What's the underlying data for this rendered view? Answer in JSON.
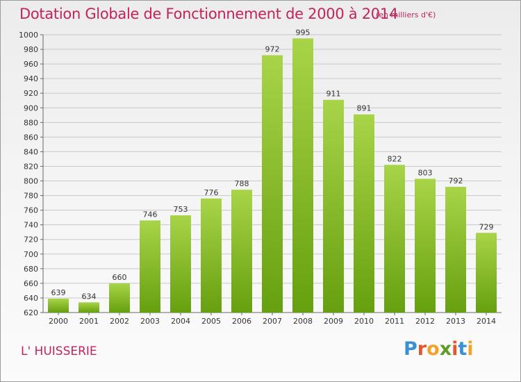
{
  "header": {
    "title": "Dotation Globale de Fonctionnement de 2000 à 2014",
    "unit": "(en milliers d'€)"
  },
  "footer": {
    "commune": "L' HUISSERIE",
    "logo_text": "Proxiti",
    "logo_colors": [
      "#3a8fd6",
      "#e8552b",
      "#f0a22a",
      "#5a9e2a",
      "#e8552b",
      "#3a8fd6",
      "#f0a22a"
    ]
  },
  "chart_data": {
    "type": "bar",
    "categories": [
      "2000",
      "2001",
      "2002",
      "2003",
      "2004",
      "2005",
      "2006",
      "2007",
      "2008",
      "2009",
      "2010",
      "2011",
      "2012",
      "2013",
      "2014"
    ],
    "values": [
      639,
      634,
      660,
      746,
      753,
      776,
      788,
      972,
      995,
      911,
      891,
      822,
      803,
      792,
      729
    ],
    "ylim": [
      620,
      1000
    ],
    "yticks": [
      620,
      640,
      660,
      680,
      700,
      720,
      740,
      760,
      780,
      800,
      820,
      840,
      860,
      880,
      900,
      920,
      940,
      960,
      980,
      1000
    ],
    "grid": true,
    "colors": {
      "bar_top": "#a8d448",
      "bar_bottom": "#66a00f",
      "grid": "#c8c8c8",
      "text": "#333333"
    }
  }
}
